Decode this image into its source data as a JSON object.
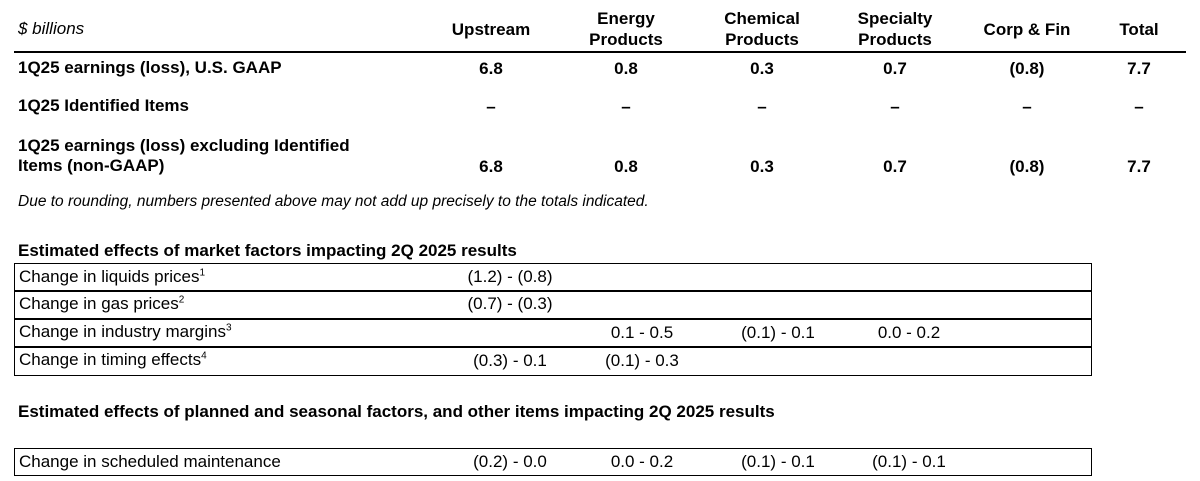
{
  "table1": {
    "unit_label": "$ billions",
    "columns": [
      "Upstream",
      "Energy Products",
      "Chemical Products",
      "Specialty Products",
      "Corp & Fin",
      "Total"
    ],
    "rows": [
      {
        "label": "1Q25 earnings (loss), U.S. GAAP",
        "values": [
          "6.8",
          "0.8",
          "0.3",
          "0.7",
          "(0.8)",
          "7.7"
        ]
      },
      {
        "label": "1Q25 Identified Items",
        "values": [
          "–",
          "–",
          "–",
          "–",
          "–",
          "–"
        ]
      },
      {
        "label_line1": "1Q25 earnings (loss) excluding Identified",
        "label_line2": "Items (non-GAAP)",
        "values": [
          "6.8",
          "0.8",
          "0.3",
          "0.7",
          "(0.8)",
          "7.7"
        ]
      }
    ],
    "footnote": "Due to rounding, numbers presented above may not add up precisely to the totals indicated."
  },
  "market": {
    "title": "Estimated effects of market factors impacting 2Q 2025 results",
    "rows": [
      {
        "label": "Change in liquids prices",
        "sup": "1",
        "values": [
          "(1.2) - (0.8)",
          "",
          "",
          ""
        ]
      },
      {
        "label": "Change in gas prices",
        "sup": "2",
        "values": [
          "(0.7) - (0.3)",
          "",
          "",
          ""
        ]
      },
      {
        "label": "Change in industry margins",
        "sup": "3",
        "values": [
          "",
          "0.1 - 0.5",
          "(0.1) - 0.1",
          "0.0 - 0.2"
        ]
      },
      {
        "label": "Change in timing effects",
        "sup": "4",
        "values": [
          "(0.3) - 0.1",
          "(0.1) - 0.3",
          "",
          ""
        ]
      }
    ]
  },
  "planned": {
    "title": "Estimated effects of planned and seasonal factors, and other items impacting 2Q 2025 results",
    "rows": [
      {
        "label": "Change in scheduled maintenance",
        "values": [
          "(0.2) - 0.0",
          "0.0 - 0.2",
          "(0.1) - 0.1",
          "(0.1) - 0.1"
        ]
      }
    ]
  }
}
